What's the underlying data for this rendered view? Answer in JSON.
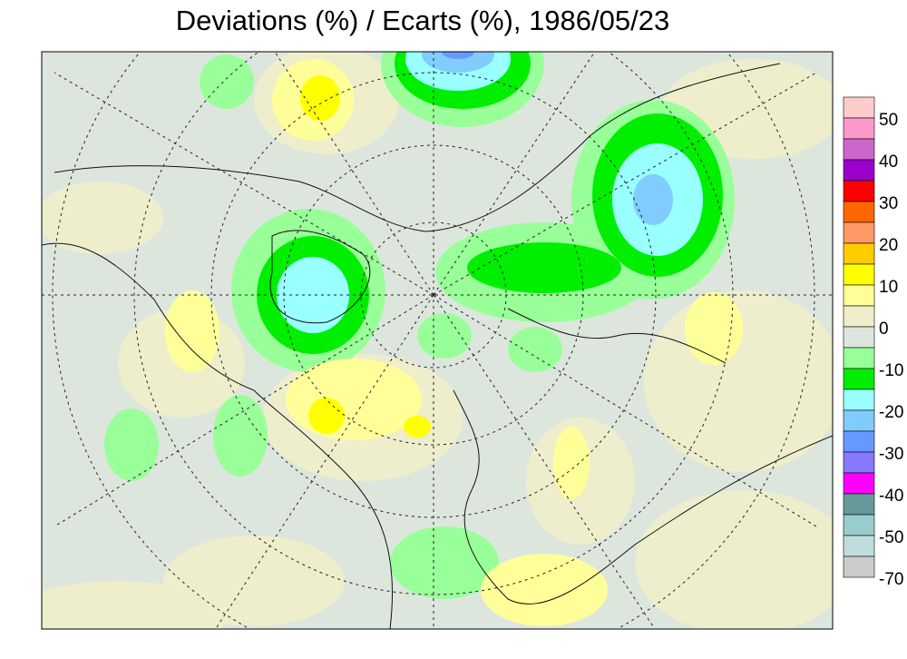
{
  "title": "Deviations (%) / Ecarts (%), 1986/05/23",
  "colorbar": {
    "colors": [
      "#ffcccc",
      "#ff99cc",
      "#cc66cc",
      "#9900cc",
      "#ff0000",
      "#ff6600",
      "#ff9966",
      "#ffcc00",
      "#ffff00",
      "#ffff99",
      "#eeeecc",
      "#dde6dd",
      "#99ff99",
      "#00ee00",
      "#99ffff",
      "#80ccff",
      "#6699ff",
      "#8877ff",
      "#ff00ff",
      "#669999",
      "#99cccc",
      "#c0dddd",
      "#cccccc"
    ],
    "labels": [
      50,
      40,
      30,
      20,
      10,
      0,
      -10,
      -20,
      -30,
      -40,
      -50,
      -70
    ]
  }
}
